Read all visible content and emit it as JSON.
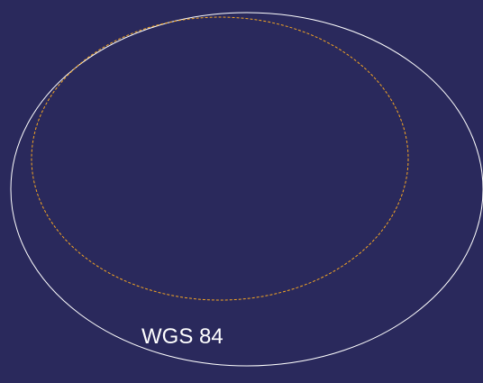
{
  "diagram": {
    "background_color": "#2a295c",
    "outer_ellipse": {
      "label": "WGS 84",
      "stroke_color": "#ffffff",
      "line_style": "solid"
    },
    "inner_ellipse": {
      "stroke_color": "#f5a623",
      "line_style": "dashed"
    }
  }
}
